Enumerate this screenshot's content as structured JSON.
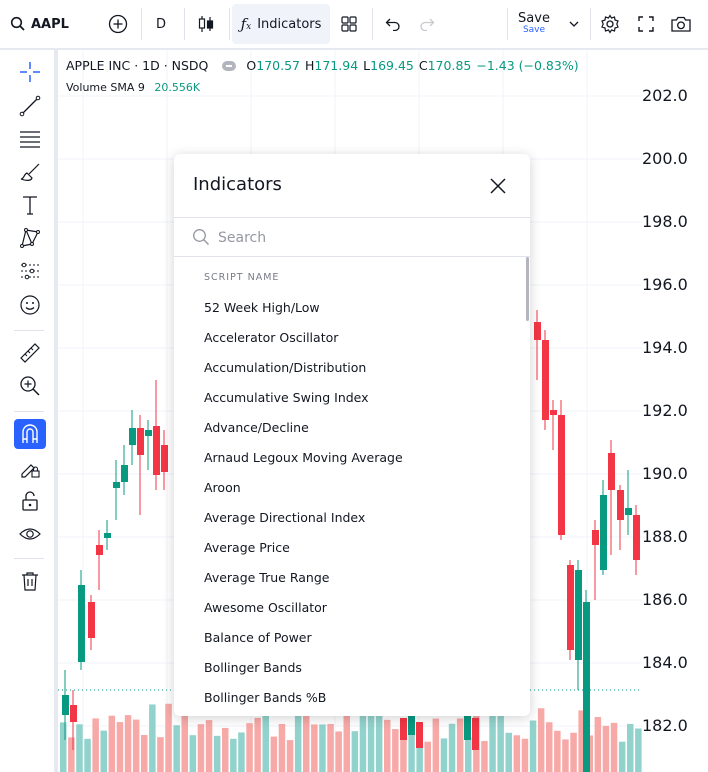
{
  "toolbar": {
    "symbol": "AAPL",
    "interval": "D",
    "indicators_label": "Indicators",
    "save_label": "Save",
    "save_sublabel": "Save"
  },
  "legend": {
    "name": "APPLE INC · 1D · NSDQ",
    "o_label": "O",
    "o_value": "170.57",
    "h_label": "H",
    "h_value": "171.94",
    "l_label": "L",
    "l_value": "169.45",
    "c_label": "C",
    "c_value": "170.85",
    "change": "−1.43 (−0.83%)",
    "volume_label": "Volume SMA 9",
    "volume_value": "20.556K"
  },
  "price_axis": [
    "202.0",
    "200.0",
    "198.0",
    "196.0",
    "194.0",
    "192.0",
    "190.0",
    "188.0",
    "186.0",
    "184.0",
    "182.0"
  ],
  "dialog": {
    "title": "Indicators",
    "search_placeholder": "Search",
    "column_header": "SCRIPT NAME",
    "items": [
      "52 Week High/Low",
      "Accelerator Oscillator",
      "Accumulation/Distribution",
      "Accumulative Swing Index",
      "Advance/Decline",
      "Arnaud Legoux Moving Average",
      "Aroon",
      "Average Directional Index",
      "Average Price",
      "Average True Range",
      "Awesome Oscillator",
      "Balance of Power",
      "Bollinger Bands",
      "Bollinger Bands %B"
    ]
  },
  "colors": {
    "up": "#089981",
    "down": "#f23645",
    "up_volume": "#92d2cc",
    "down_volume": "#f7a9a7",
    "accent": "#2962ff"
  },
  "left_tools": [
    "crosshair-icon",
    "trend-line-icon",
    "fib-icon",
    "brush-icon",
    "text-icon",
    "pattern-icon",
    "prediction-icon",
    "emoji-icon",
    "ruler-icon",
    "zoom-in-icon",
    "magnet-icon",
    "lock-drawing-icon",
    "unlock-icon",
    "eye-icon",
    "trash-icon"
  ]
}
